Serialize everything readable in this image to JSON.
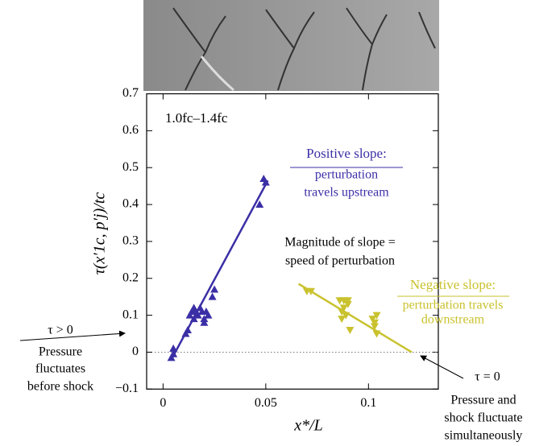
{
  "chart_data": {
    "type": "scatter",
    "x_label": "x*/L",
    "y_label": "τ(x′1c, p′j)/tc",
    "xlim": [
      -0.008,
      0.134
    ],
    "ylim": [
      -0.1,
      0.7
    ],
    "xticks": [
      0,
      0.05,
      0.1
    ],
    "yticks": [
      {
        "value": -0.1,
        "label": "−0.1"
      },
      0,
      0.1,
      0.2,
      0.3,
      0.4,
      0.5,
      0.6,
      0.7
    ],
    "zero_line": true,
    "series": [
      {
        "marker": "triangle-up",
        "color": "#3b2fa6",
        "x": [
          0.004,
          0.005,
          0.005,
          0.011,
          0.012,
          0.013,
          0.014,
          0.015,
          0.015,
          0.016,
          0.017,
          0.018,
          0.019,
          0.02,
          0.02,
          0.021,
          0.022,
          0.024,
          0.025,
          0.047,
          0.049,
          0.05
        ],
        "values": [
          -0.015,
          -0.005,
          0.01,
          0.05,
          0.06,
          0.1,
          0.11,
          0.09,
          0.12,
          0.11,
          0.1,
          0.12,
          0.11,
          0.09,
          0.08,
          0.11,
          0.1,
          0.15,
          0.17,
          0.4,
          0.47,
          0.46
        ]
      },
      {
        "marker": "triangle-down",
        "color": "#c9c22e",
        "x": [
          0.07,
          0.072,
          0.086,
          0.087,
          0.087,
          0.088,
          0.088,
          0.089,
          0.09,
          0.09,
          0.091,
          0.102,
          0.103,
          0.103,
          0.104,
          0.104
        ],
        "values": [
          0.165,
          0.165,
          0.14,
          0.11,
          0.09,
          0.12,
          0.14,
          0.1,
          0.14,
          0.13,
          0.06,
          0.09,
          0.07,
          0.08,
          0.05,
          0.1
        ]
      }
    ],
    "fits": [
      {
        "color": "#3b2fa6",
        "x": [
          0.004,
          0.051
        ],
        "values": [
          -0.02,
          0.465
        ]
      },
      {
        "color": "#c9c22e",
        "x": [
          0.066,
          0.121
        ],
        "values": [
          0.185,
          0.0
        ]
      }
    ],
    "annotations": [
      {
        "text": "1.0fc–1.4fc",
        "color": "#000000"
      },
      {
        "text": "Positive slope:",
        "color": "#3b2fa6"
      },
      {
        "text": "perturbation",
        "color": "#3b2fa6"
      },
      {
        "text": "travels upstream",
        "color": "#3b2fa6"
      },
      {
        "text": "Magnitude of slope =",
        "color": "#000000"
      },
      {
        "text": "speed of perturbation",
        "color": "#000000"
      },
      {
        "text": "Negative slope:",
        "color": "#c9c22e"
      },
      {
        "text": "perturbation travels",
        "color": "#c9c22e"
      },
      {
        "text": "downstream",
        "color": "#c9c22e"
      },
      {
        "text": "τ > 0",
        "color": "#000000"
      },
      {
        "text": "Pressure",
        "color": "#000000"
      },
      {
        "text": "fluctuates",
        "color": "#000000"
      },
      {
        "text": "before shock",
        "color": "#000000"
      },
      {
        "text": "τ = 0",
        "color": "#000000"
      },
      {
        "text": "Pressure and",
        "color": "#000000"
      },
      {
        "text": "shock fluctuate",
        "color": "#000000"
      },
      {
        "text": "simultaneously",
        "color": "#000000"
      }
    ]
  }
}
